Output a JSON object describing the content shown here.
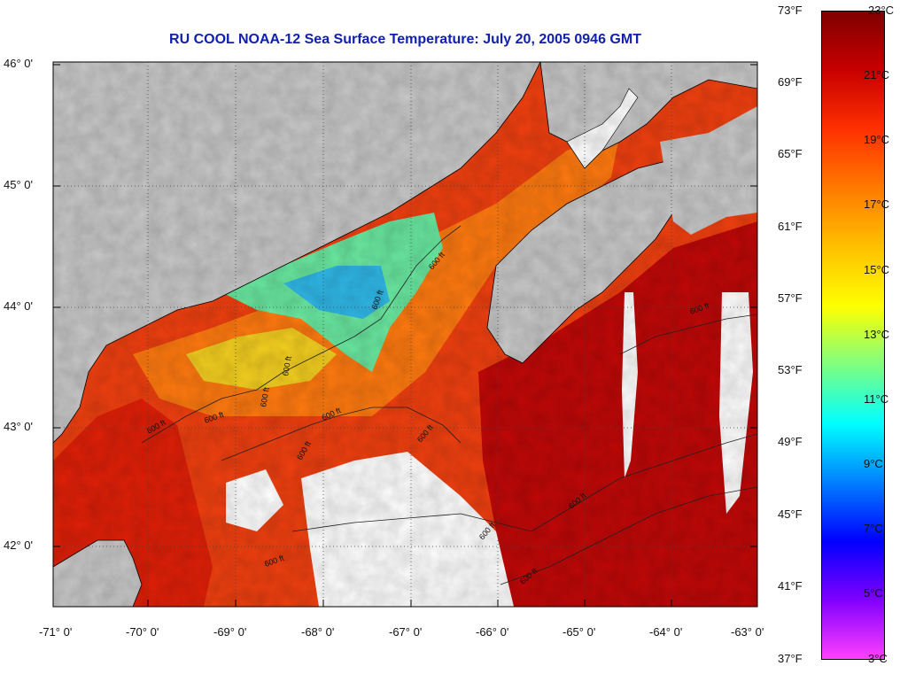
{
  "title": "RU COOL  NOAA-12  Sea Surface Temperature:  July 20, 2005 0946 GMT",
  "map": {
    "type": "sea-surface-temperature",
    "lat_range": [
      41.5,
      46.0
    ],
    "lon_range": [
      -71.0,
      -63.0
    ],
    "lat_ticks": [
      "46° 0'",
      "45° 0'",
      "44° 0'",
      "43° 0'",
      "42° 0'"
    ],
    "lon_ticks": [
      "-71° 0'",
      "-70° 0'",
      "-69° 0'",
      "-68° 0'",
      "-67° 0'",
      "-66° 0'",
      "-65° 0'",
      "-64° 0'",
      "-63° 0'"
    ],
    "contour_labels": [
      "600 ft",
      "600 ft",
      "600 ft",
      "600 ft",
      "600 ft",
      "600 ft",
      "600 ft",
      "600 ft",
      "600 ft",
      "600 ft",
      "600 ft",
      "600 ft",
      "600 ft",
      "600 ft"
    ],
    "land_color": "#c8c8c8",
    "cloud_color": "#ffffff"
  },
  "colorbar": {
    "fahrenheit_labels": [
      "73°F",
      "69°F",
      "65°F",
      "61°F",
      "57°F",
      "53°F",
      "49°F",
      "45°F",
      "41°F",
      "37°F"
    ],
    "celsius_labels": [
      "23°C",
      "21°C",
      "19°C",
      "17°C",
      "15°C",
      "13°C",
      "11°C",
      "9°C",
      "7°C",
      "5°C",
      "3°C"
    ],
    "range_celsius": [
      3,
      23
    ],
    "colors": [
      "#800000",
      "#c80000",
      "#ff3000",
      "#ff7a00",
      "#ffc000",
      "#ffff00",
      "#7fff7f",
      "#00ffff",
      "#0080ff",
      "#0000ff",
      "#8000ff",
      "#ff40ff"
    ]
  }
}
